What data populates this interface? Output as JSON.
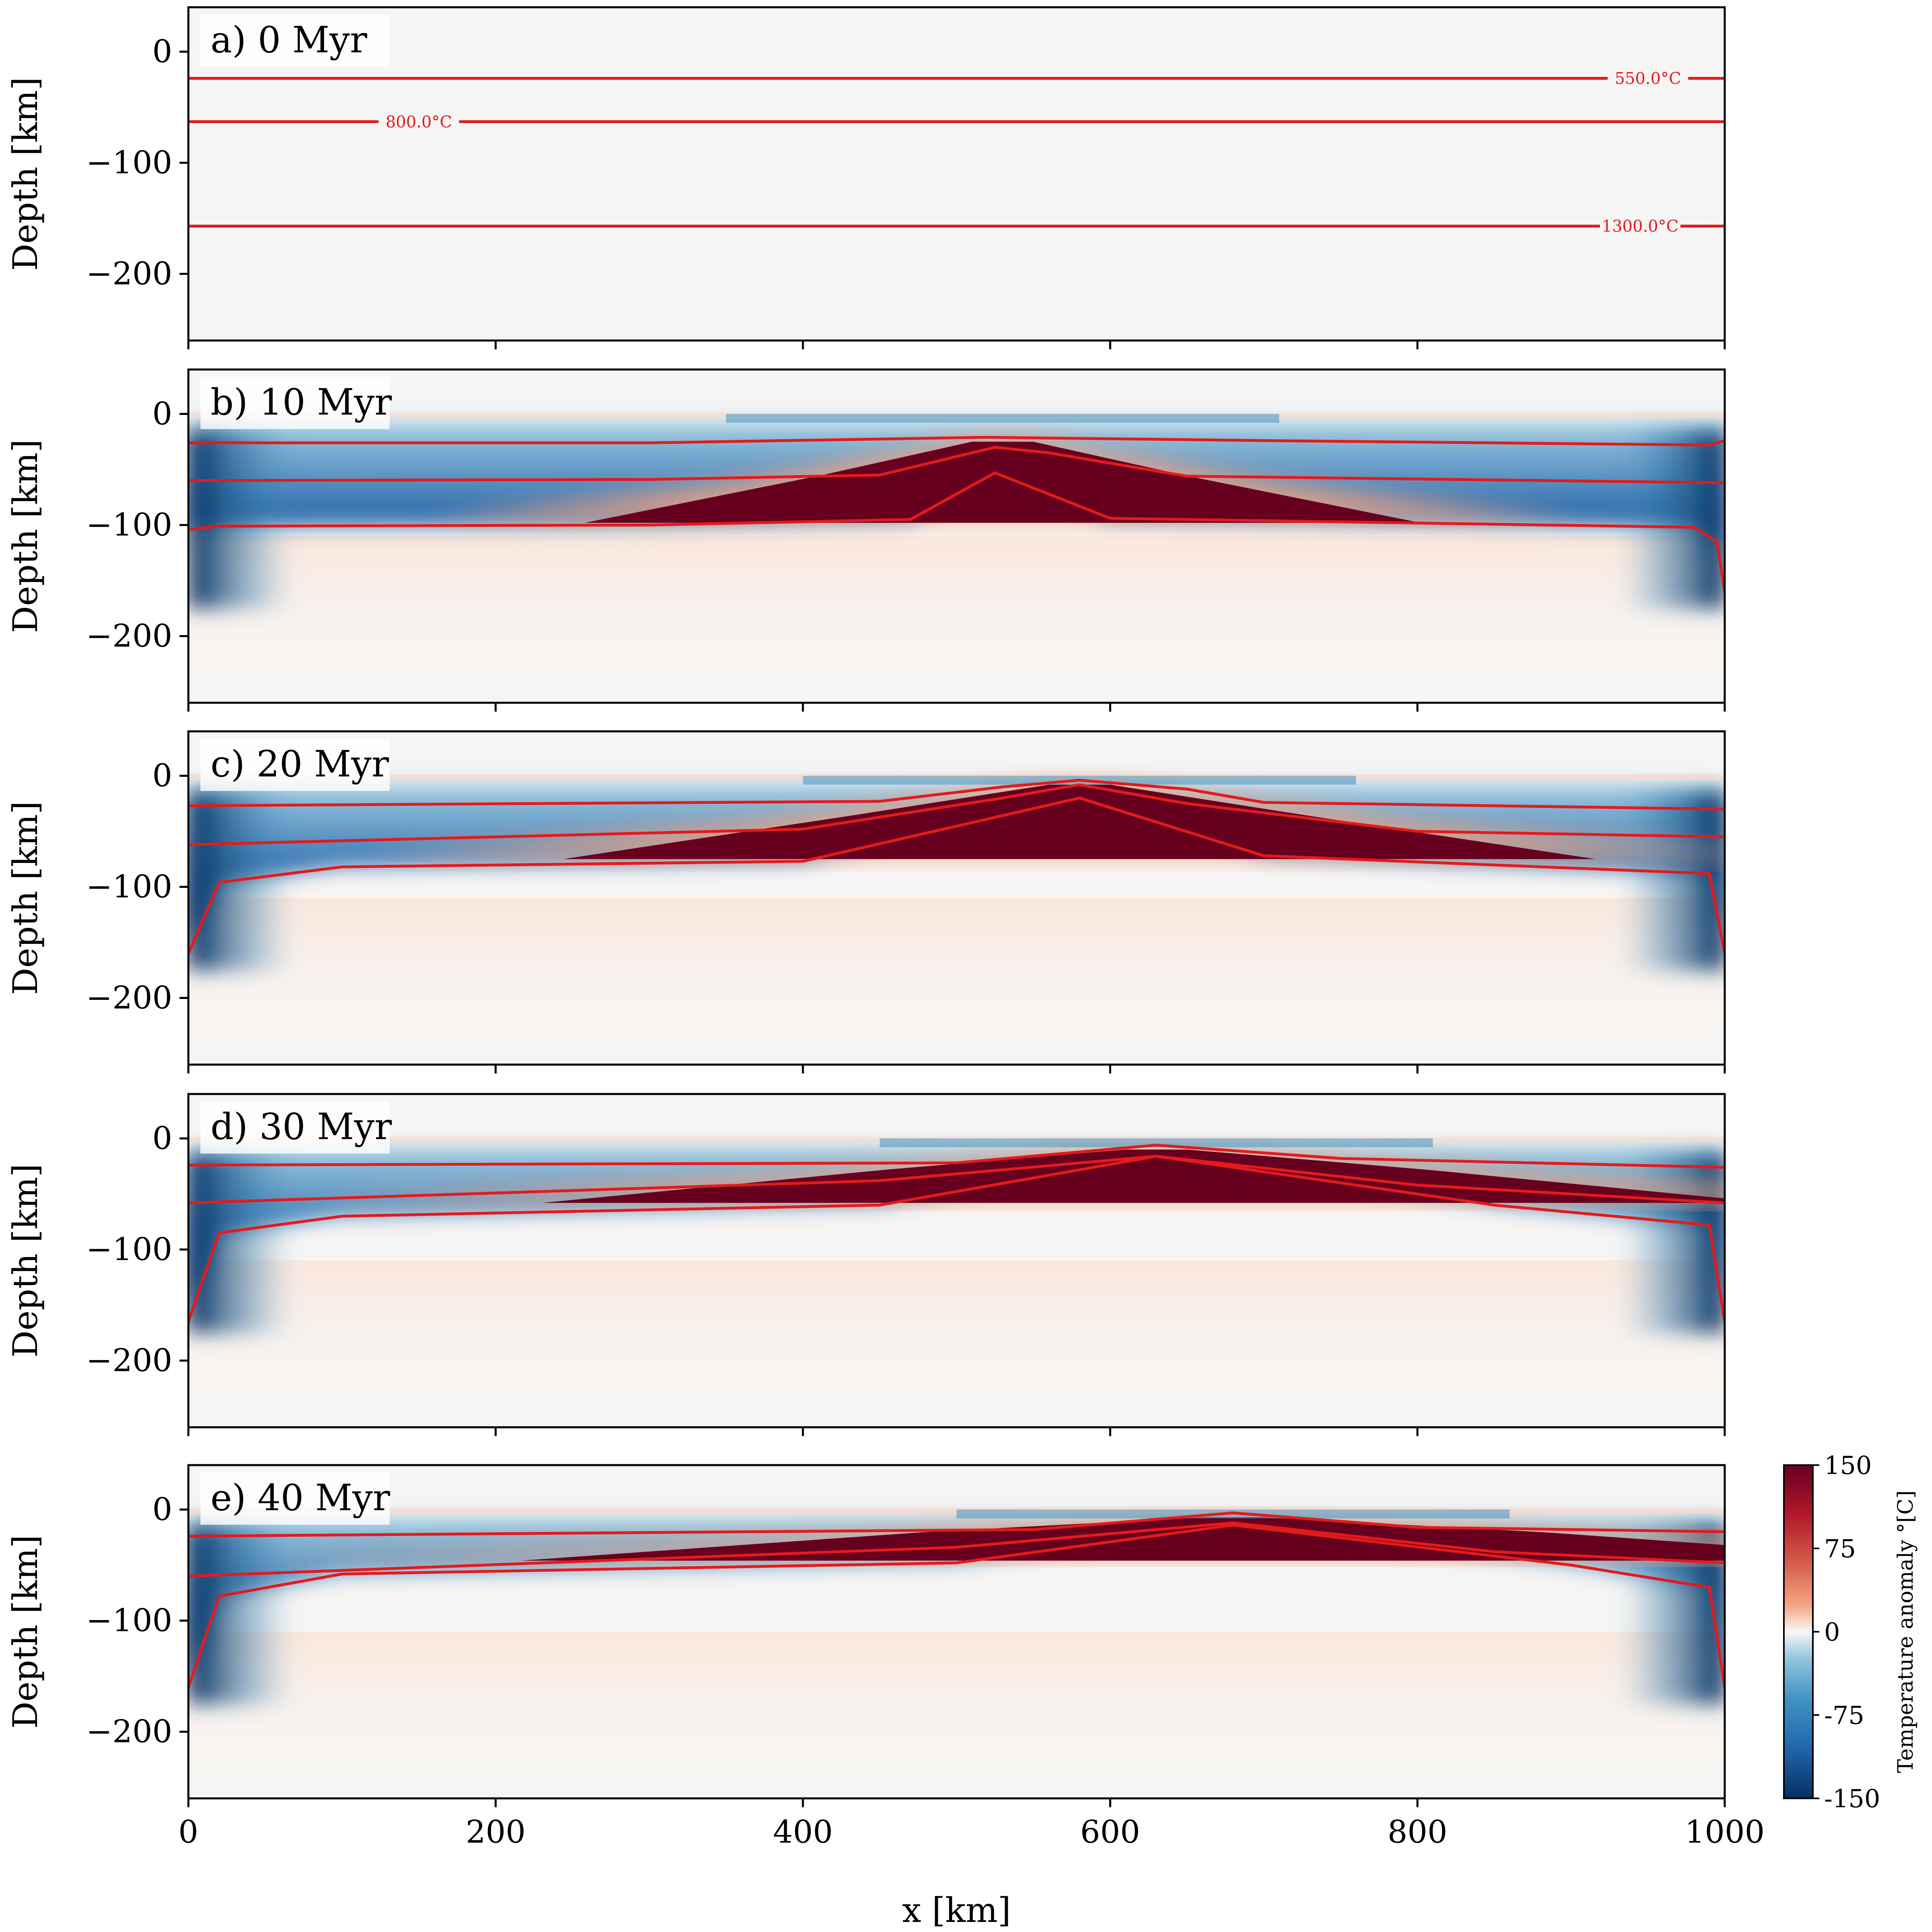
{
  "chart_data": [
    {
      "type": "heatmap",
      "title": "a) 0 Myr",
      "time_myr": 0,
      "xlabel": "",
      "ylabel": "Depth [km]",
      "xlim": [
        0,
        1000
      ],
      "ylim": [
        -260,
        40
      ],
      "yticks": [
        0,
        -100,
        -200
      ],
      "yticklabels": [
        "0",
        "−100",
        "−200"
      ],
      "contours": [
        {
          "label": "550.0°C",
          "depths": [
            [
              0,
              -24
            ],
            [
              1000,
              -24
            ]
          ]
        },
        {
          "label": "800.0°C",
          "depths": [
            [
              0,
              -63
            ],
            [
              1000,
              -63
            ]
          ]
        },
        {
          "label": "1300.0°C",
          "depths": [
            [
              0,
              -157
            ],
            [
              1000,
              -157
            ]
          ]
        }
      ]
    },
    {
      "type": "heatmap",
      "title": "b) 10 Myr",
      "time_myr": 10,
      "xlabel": "",
      "ylabel": "Depth [km]",
      "xlim": [
        0,
        1000
      ],
      "ylim": [
        -260,
        40
      ],
      "yticks": [
        0,
        -100,
        -200
      ],
      "yticklabels": [
        "0",
        "−100",
        "−200"
      ],
      "hot_anomaly_center_km": 530,
      "contours": [
        {
          "depths": [
            [
              0,
              -26
            ],
            [
              300,
              -26
            ],
            [
              520,
              -21
            ],
            [
              700,
              -24
            ],
            [
              990,
              -28
            ],
            [
              1000,
              -24
            ]
          ]
        },
        {
          "depths": [
            [
              0,
              -60
            ],
            [
              300,
              -59
            ],
            [
              450,
              -55
            ],
            [
              525,
              -30
            ],
            [
              560,
              -35
            ],
            [
              650,
              -56
            ],
            [
              1000,
              -62
            ]
          ]
        },
        {
          "depths": [
            [
              0,
              -104
            ],
            [
              20,
              -101
            ],
            [
              300,
              -100
            ],
            [
              470,
              -95
            ],
            [
              525,
              -53
            ],
            [
              600,
              -94
            ],
            [
              980,
              -102
            ],
            [
              995,
              -115
            ],
            [
              1000,
              -160
            ]
          ]
        }
      ]
    },
    {
      "type": "heatmap",
      "title": "c) 20 Myr",
      "time_myr": 20,
      "xlabel": "",
      "ylabel": "Depth [km]",
      "xlim": [
        0,
        1000
      ],
      "ylim": [
        -260,
        40
      ],
      "yticks": [
        0,
        -100,
        -200
      ],
      "yticklabels": [
        "0",
        "−100",
        "−200"
      ],
      "hot_anomaly_center_km": 580,
      "contours": [
        {
          "depths": [
            [
              0,
              -27
            ],
            [
              450,
              -23
            ],
            [
              530,
              -10
            ],
            [
              580,
              -4
            ],
            [
              650,
              -12
            ],
            [
              700,
              -24
            ],
            [
              1000,
              -30
            ]
          ]
        },
        {
          "depths": [
            [
              0,
              -62
            ],
            [
              400,
              -48
            ],
            [
              530,
              -20
            ],
            [
              580,
              -8
            ],
            [
              650,
              -25
            ],
            [
              800,
              -50
            ],
            [
              1000,
              -55
            ]
          ]
        },
        {
          "depths": [
            [
              0,
              -160
            ],
            [
              20,
              -96
            ],
            [
              100,
              -82
            ],
            [
              400,
              -77
            ],
            [
              580,
              -20
            ],
            [
              700,
              -72
            ],
            [
              990,
              -88
            ],
            [
              1000,
              -160
            ]
          ]
        }
      ]
    },
    {
      "type": "heatmap",
      "title": "d) 30 Myr",
      "time_myr": 30,
      "xlabel": "",
      "ylabel": "Depth [km]",
      "xlim": [
        0,
        1000
      ],
      "ylim": [
        -260,
        40
      ],
      "yticks": [
        0,
        -100,
        -200
      ],
      "yticklabels": [
        "0",
        "−100",
        "−200"
      ],
      "hot_anomaly_center_km": 630,
      "contours": [
        {
          "depths": [
            [
              0,
              -24
            ],
            [
              500,
              -22
            ],
            [
              630,
              -6
            ],
            [
              750,
              -18
            ],
            [
              1000,
              -26
            ]
          ]
        },
        {
          "depths": [
            [
              0,
              -58
            ],
            [
              450,
              -38
            ],
            [
              630,
              -16
            ],
            [
              800,
              -42
            ],
            [
              1000,
              -58
            ]
          ]
        },
        {
          "depths": [
            [
              0,
              -165
            ],
            [
              20,
              -85
            ],
            [
              100,
              -70
            ],
            [
              450,
              -60
            ],
            [
              630,
              -16
            ],
            [
              850,
              -60
            ],
            [
              990,
              -78
            ],
            [
              1000,
              -165
            ]
          ]
        }
      ]
    },
    {
      "type": "heatmap",
      "title": "e) 40 Myr",
      "time_myr": 40,
      "xlabel": "x [km]",
      "ylabel": "Depth [km]",
      "xlim": [
        0,
        1000
      ],
      "ylim": [
        -260,
        40
      ],
      "xticks": [
        0,
        200,
        400,
        600,
        800,
        1000
      ],
      "xticklabels": [
        "0",
        "200",
        "400",
        "600",
        "800",
        "1000"
      ],
      "yticks": [
        0,
        -100,
        -200
      ],
      "yticklabels": [
        "0",
        "−100",
        "−200"
      ],
      "hot_anomaly_center_km": 680,
      "contours": [
        {
          "depths": [
            [
              0,
              -24
            ],
            [
              550,
              -18
            ],
            [
              680,
              -3
            ],
            [
              800,
              -16
            ],
            [
              1000,
              -20
            ]
          ]
        },
        {
          "depths": [
            [
              0,
              -60
            ],
            [
              500,
              -34
            ],
            [
              680,
              -12
            ],
            [
              850,
              -38
            ],
            [
              1000,
              -48
            ]
          ]
        },
        {
          "depths": [
            [
              0,
              -160
            ],
            [
              20,
              -78
            ],
            [
              100,
              -58
            ],
            [
              500,
              -48
            ],
            [
              680,
              -14
            ],
            [
              900,
              -50
            ],
            [
              990,
              -70
            ],
            [
              1000,
              -160
            ]
          ]
        }
      ]
    }
  ],
  "colorbar": {
    "label": "Temperature anomaly °[C]",
    "ticks": [
      150,
      75,
      0,
      -75,
      -150
    ],
    "ticklabels": [
      "150",
      "75",
      "0",
      "-75",
      "-150"
    ],
    "cmap": "RdBu_r",
    "colors": {
      "low": "#053061",
      "mid": "#f7f7f7",
      "high": "#67001f"
    }
  },
  "colors": {
    "contour": "#e41a1c",
    "background": "#f5f5f5"
  }
}
